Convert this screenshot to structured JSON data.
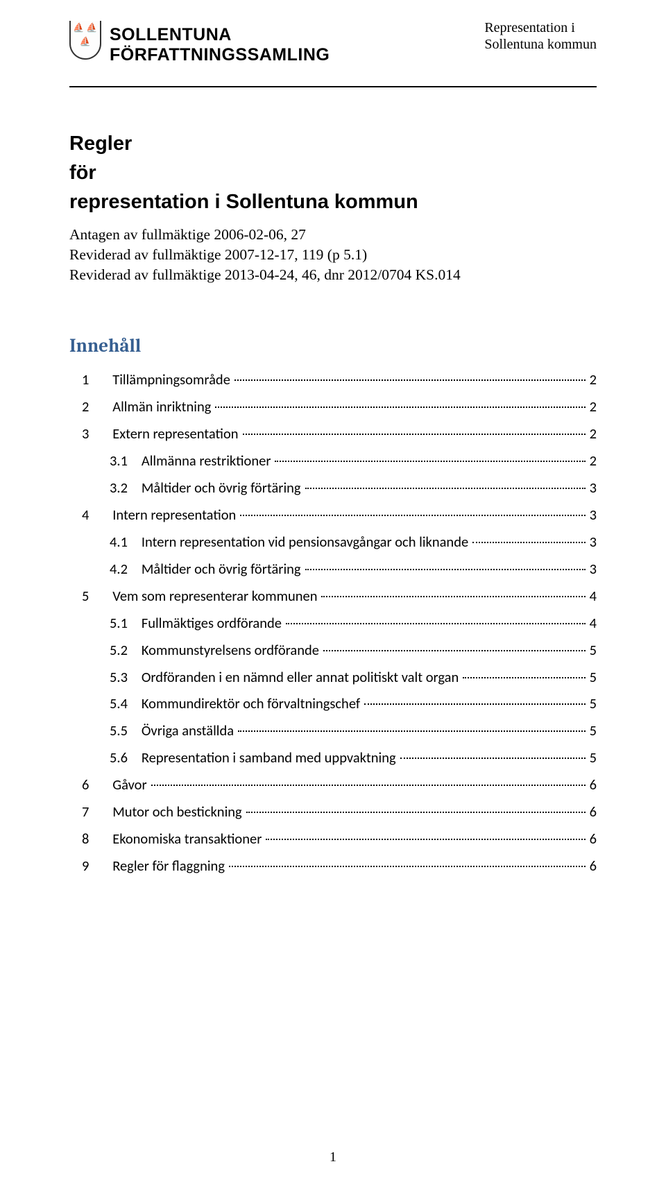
{
  "header": {
    "org_line1": "SOLLENTUNA",
    "org_line2": "FÖRFATTNINGSSAMLING",
    "right_line1": "Representation i",
    "right_line2": "Sollentuna kommun"
  },
  "title": {
    "l1": "Regler",
    "l2": "för",
    "l3": "representation i Sollentuna kommun"
  },
  "meta": {
    "l1": "Antagen av fullmäktige 2006-02-06, 27",
    "l2": "Reviderad av fullmäktige 2007-12-17, 119 (p 5.1)",
    "l3": "Reviderad av fullmäktige 2013-04-24, 46, dnr 2012/0704 KS.014"
  },
  "toc_heading": "Innehåll",
  "toc": [
    {
      "level": 0,
      "num": "1",
      "text": "Tillämpningsområde",
      "page": "2"
    },
    {
      "level": 0,
      "num": "2",
      "text": "Allmän inriktning",
      "page": "2"
    },
    {
      "level": 0,
      "num": "3",
      "text": "Extern representation",
      "page": "2"
    },
    {
      "level": 1,
      "num": "3.1",
      "text": "Allmänna restriktioner",
      "page": "2"
    },
    {
      "level": 1,
      "num": "3.2",
      "text": "Måltider och övrig förtäring",
      "page": "3"
    },
    {
      "level": 0,
      "num": "4",
      "text": "Intern representation",
      "page": "3"
    },
    {
      "level": 1,
      "num": "4.1",
      "text": "Intern representation vid pensionsavgångar och liknande",
      "page": "3"
    },
    {
      "level": 1,
      "num": "4.2",
      "text": "Måltider och övrig förtäring",
      "page": "3"
    },
    {
      "level": 0,
      "num": "5",
      "text": "Vem som representerar kommunen",
      "page": "4"
    },
    {
      "level": 1,
      "num": "5.1",
      "text": "Fullmäktiges ordförande",
      "page": "4"
    },
    {
      "level": 1,
      "num": "5.2",
      "text": "Kommunstyrelsens ordförande",
      "page": "5"
    },
    {
      "level": 1,
      "num": "5.3",
      "text": "Ordföranden i en nämnd eller annat politiskt valt organ",
      "page": "5"
    },
    {
      "level": 1,
      "num": "5.4",
      "text": "Kommundirektör och förvaltningschef",
      "page": "5"
    },
    {
      "level": 1,
      "num": "5.5",
      "text": "Övriga anställda",
      "page": "5"
    },
    {
      "level": 1,
      "num": "5.6",
      "text": "Representation i samband med uppvaktning",
      "page": "5"
    },
    {
      "level": 0,
      "num": "6",
      "text": "Gåvor",
      "page": "6"
    },
    {
      "level": 0,
      "num": "7",
      "text": "Mutor och bestickning",
      "page": "6"
    },
    {
      "level": 0,
      "num": "8",
      "text": "Ekonomiska transaktioner",
      "page": "6"
    },
    {
      "level": 0,
      "num": "9",
      "text": "Regler för flaggning",
      "page": "6"
    }
  ],
  "page_number": "1",
  "colors": {
    "text": "#000000",
    "toc_head": "#365f91",
    "background": "#ffffff"
  }
}
